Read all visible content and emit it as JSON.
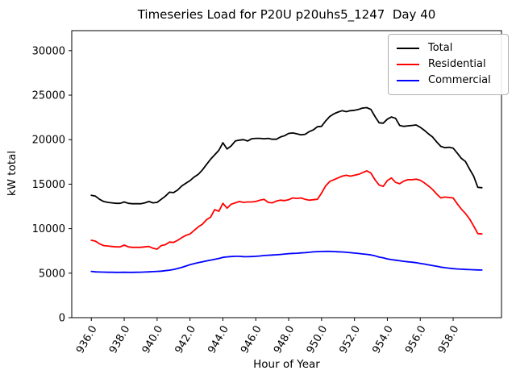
{
  "chart_data": {
    "type": "line",
    "title": "Timeseries Load for P20U p20uhs5_1247  Day 40",
    "xlabel": "Hour of Year",
    "ylabel": "kW total",
    "xlim": [
      934.81,
      960.94
    ],
    "ylim": [
      0,
      32250
    ],
    "grid": false,
    "legend_position": "upper right",
    "xticks": [
      936,
      938,
      940,
      942,
      944,
      946,
      948,
      950,
      952,
      954,
      956,
      958
    ],
    "xtick_labels": [
      "936.0",
      "938.0",
      "940.0",
      "942.0",
      "944.0",
      "946.0",
      "948.0",
      "950.0",
      "952.0",
      "954.0",
      "956.0",
      "958.0"
    ],
    "yticks": [
      0,
      5000,
      10000,
      15000,
      20000,
      25000,
      30000
    ],
    "ytick_labels": [
      "0",
      "5000",
      "10000",
      "15000",
      "20000",
      "25000",
      "30000"
    ],
    "x": [
      936.0,
      936.25,
      936.5,
      936.75,
      937.0,
      937.25,
      937.5,
      937.75,
      938.0,
      938.25,
      938.5,
      938.75,
      939.0,
      939.25,
      939.5,
      939.75,
      940.0,
      940.25,
      940.5,
      940.75,
      941.0,
      941.25,
      941.5,
      941.75,
      942.0,
      942.25,
      942.5,
      942.75,
      943.0,
      943.25,
      943.5,
      943.75,
      944.0,
      944.25,
      944.5,
      944.75,
      945.0,
      945.25,
      945.5,
      945.75,
      946.0,
      946.25,
      946.5,
      946.75,
      947.0,
      947.25,
      947.5,
      947.75,
      948.0,
      948.25,
      948.5,
      948.75,
      949.0,
      949.25,
      949.5,
      949.75,
      950.0,
      950.25,
      950.5,
      950.75,
      951.0,
      951.25,
      951.5,
      951.75,
      952.0,
      952.25,
      952.5,
      952.75,
      953.0,
      953.25,
      953.5,
      953.75,
      954.0,
      954.25,
      954.5,
      954.75,
      955.0,
      955.25,
      955.5,
      955.75,
      956.0,
      956.25,
      956.5,
      956.75,
      957.0,
      957.25,
      957.5,
      957.75,
      958.0,
      958.25,
      958.5,
      958.75,
      959.0,
      959.25,
      959.5,
      959.75
    ],
    "series": [
      {
        "name": "Total",
        "color": "#000000",
        "values": [
          13750,
          13650,
          13300,
          13050,
          12950,
          12900,
          12850,
          12850,
          13000,
          12850,
          12800,
          12800,
          12800,
          12900,
          13050,
          12900,
          12950,
          13300,
          13650,
          14100,
          14050,
          14350,
          14800,
          15100,
          15400,
          15800,
          16100,
          16600,
          17200,
          17800,
          18300,
          18800,
          19650,
          18950,
          19300,
          19850,
          19950,
          20000,
          19850,
          20100,
          20150,
          20150,
          20100,
          20150,
          20050,
          20050,
          20300,
          20450,
          20700,
          20750,
          20650,
          20550,
          20600,
          20900,
          21100,
          21450,
          21500,
          22100,
          22600,
          22900,
          23100,
          23250,
          23150,
          23250,
          23300,
          23400,
          23550,
          23600,
          23400,
          22600,
          21900,
          21850,
          22300,
          22550,
          22400,
          21600,
          21500,
          21550,
          21600,
          21650,
          21400,
          21050,
          20650,
          20300,
          19750,
          19250,
          19100,
          19150,
          19050,
          18500,
          17900,
          17550,
          16700,
          15900,
          14650,
          14600
        ]
      },
      {
        "name": "Residential",
        "color": "#ff0000",
        "values": [
          8700,
          8600,
          8300,
          8100,
          8050,
          8000,
          7950,
          7950,
          8150,
          7950,
          7900,
          7900,
          7900,
          7950,
          8000,
          7800,
          7700,
          8100,
          8200,
          8500,
          8450,
          8700,
          9000,
          9250,
          9400,
          9800,
          10200,
          10500,
          11000,
          11300,
          12150,
          11950,
          12850,
          12300,
          12750,
          12900,
          13050,
          12950,
          13000,
          13000,
          13050,
          13200,
          13300,
          12950,
          12900,
          13100,
          13200,
          13150,
          13250,
          13450,
          13400,
          13450,
          13300,
          13200,
          13250,
          13300,
          14000,
          14800,
          15300,
          15500,
          15700,
          15900,
          16000,
          15900,
          16000,
          16100,
          16300,
          16500,
          16250,
          15500,
          14900,
          14750,
          15400,
          15700,
          15200,
          15050,
          15350,
          15500,
          15500,
          15550,
          15450,
          15150,
          14800,
          14400,
          13900,
          13450,
          13550,
          13500,
          13450,
          12800,
          12200,
          11700,
          11100,
          10300,
          9450,
          9400
        ]
      },
      {
        "name": "Commercial",
        "color": "#0000ff",
        "values": [
          5200,
          5150,
          5130,
          5120,
          5100,
          5100,
          5090,
          5090,
          5100,
          5090,
          5090,
          5100,
          5110,
          5130,
          5150,
          5170,
          5200,
          5230,
          5280,
          5340,
          5420,
          5530,
          5650,
          5800,
          5950,
          6070,
          6180,
          6280,
          6380,
          6470,
          6560,
          6650,
          6780,
          6830,
          6870,
          6890,
          6890,
          6860,
          6850,
          6870,
          6890,
          6930,
          6980,
          7010,
          7040,
          7070,
          7100,
          7150,
          7190,
          7220,
          7240,
          7270,
          7300,
          7350,
          7390,
          7420,
          7440,
          7450,
          7450,
          7430,
          7400,
          7380,
          7350,
          7300,
          7260,
          7210,
          7160,
          7110,
          7050,
          6950,
          6800,
          6720,
          6600,
          6520,
          6460,
          6400,
          6330,
          6280,
          6230,
          6180,
          6100,
          6020,
          5930,
          5850,
          5770,
          5680,
          5620,
          5560,
          5510,
          5470,
          5440,
          5420,
          5400,
          5380,
          5360,
          5350
        ]
      }
    ]
  }
}
